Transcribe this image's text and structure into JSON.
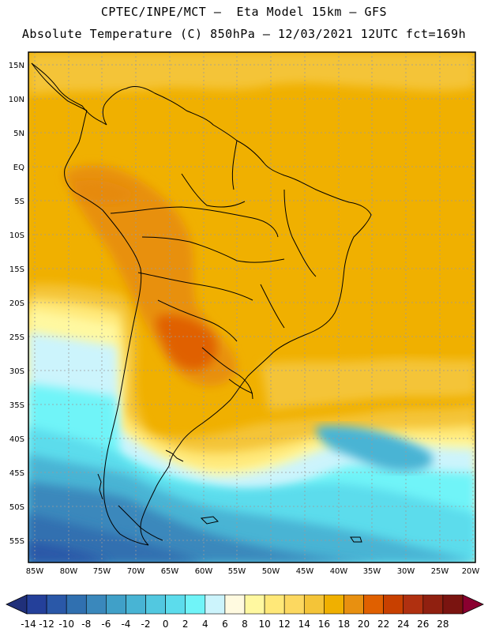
{
  "header": {
    "title_line1": "CPTEC/INPE/MCT –  Eta Model 15km – GFS",
    "title_line2": "Absolute Temperature (C) 850hPa – 12/03/2021 12UTC fct=169h"
  },
  "map": {
    "lat_labels": [
      "15N",
      "10N",
      "5N",
      "EQ",
      "5S",
      "10S",
      "15S",
      "20S",
      "25S",
      "30S",
      "35S",
      "40S",
      "45S",
      "50S",
      "55S"
    ],
    "lon_labels": [
      "85W",
      "80W",
      "75W",
      "70W",
      "65W",
      "60W",
      "55W",
      "50W",
      "45W",
      "40W",
      "35W",
      "30W",
      "25W",
      "20W"
    ]
  },
  "colorbar": {
    "labels": [
      "-14",
      "-12",
      "-10",
      "-8",
      "-6",
      "-4",
      "-2",
      "0",
      "2",
      "4",
      "6",
      "8",
      "10",
      "12",
      "14",
      "16",
      "18",
      "20",
      "22",
      "24",
      "26",
      "28"
    ],
    "under_color": "#20307a",
    "over_color": "#8a0030",
    "colors": [
      "#24409a",
      "#2a58a8",
      "#3070b0",
      "#3a88bc",
      "#40a0c8",
      "#48b4d4",
      "#52c8e0",
      "#5cdcec",
      "#70f4f8",
      "#ccf4fc",
      "#fffae0",
      "#fff8a0",
      "#ffe878",
      "#fcd860",
      "#f4c438",
      "#f0b000",
      "#e89010",
      "#e06000",
      "#c84000",
      "#b03010",
      "#902010",
      "#7a1410"
    ]
  }
}
